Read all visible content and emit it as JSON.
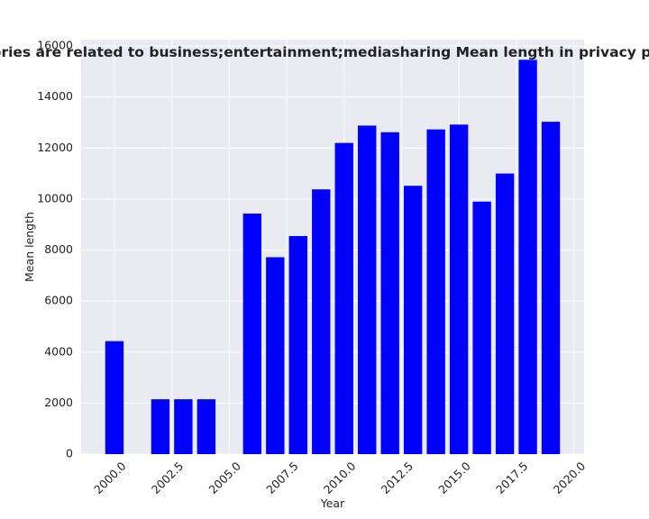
{
  "chart_data": {
    "type": "bar",
    "title": "categories are related to business;entertainment;mediasharing Mean length in privacy policies",
    "xlabel": "Year",
    "ylabel": "Mean length",
    "x": [
      2000,
      2002,
      2003,
      2004,
      2006,
      2007,
      2008,
      2009,
      2010,
      2011,
      2012,
      2013,
      2014,
      2015,
      2016,
      2017,
      2018,
      2019
    ],
    "values": [
      4430,
      2150,
      2150,
      2150,
      9430,
      7720,
      8550,
      10380,
      12200,
      12880,
      12620,
      10520,
      12730,
      12920,
      9900,
      11000,
      15460,
      13030
    ],
    "xticks": [
      "2000.0",
      "2002.5",
      "2005.0",
      "2007.5",
      "2010.0",
      "2012.5",
      "2015.0",
      "2017.5",
      "2020.0"
    ],
    "xtick_values": [
      2000,
      2002.5,
      2005,
      2007.5,
      2010,
      2012.5,
      2015,
      2017.5,
      2020
    ],
    "yticks": [
      "0",
      "2000",
      "4000",
      "6000",
      "8000",
      "10000",
      "12000",
      "14000",
      "16000"
    ],
    "ytick_values": [
      0,
      2000,
      4000,
      6000,
      8000,
      10000,
      12000,
      14000,
      16000
    ],
    "xlim": [
      1998.55,
      2020.45
    ],
    "ylim": [
      0,
      16250
    ],
    "bar_width": 0.8,
    "bar_color": "#0000ff",
    "plot_background": "#eaeaf2",
    "grid_color": "#ffffff",
    "grid": true,
    "xtick_rotation": 45
  }
}
